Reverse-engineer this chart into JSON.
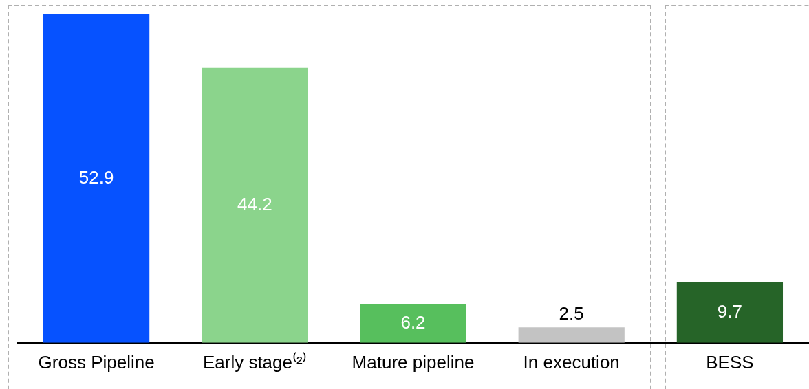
{
  "chart_data": {
    "type": "bar",
    "categories": [
      "Gross Pipeline",
      "Early stage⁽²⁾",
      "Mature pipeline",
      "In execution",
      "BESS"
    ],
    "values": [
      52.9,
      44.2,
      6.2,
      2.5,
      9.7
    ],
    "colors": [
      "#0652ff",
      "#8bd48c",
      "#57bf5d",
      "#c3c3c3",
      "#266428"
    ],
    "data_labels": true,
    "grid": false,
    "legend": false,
    "tick_labels": "x"
  }
}
